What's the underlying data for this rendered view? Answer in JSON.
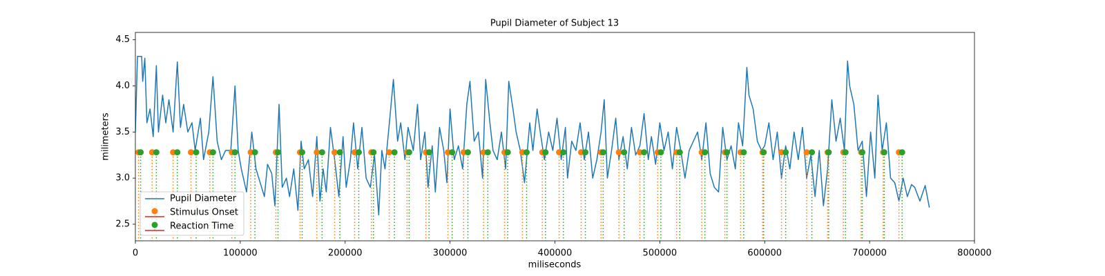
{
  "chart_data": {
    "type": "line",
    "title": "Pupil Diameter of Subject 13",
    "xlabel": "miliseconds",
    "ylabel": "milimeters",
    "xlim": [
      0,
      800000
    ],
    "ylim": [
      2.32,
      4.58
    ],
    "xticks": [
      0,
      100000,
      200000,
      300000,
      400000,
      500000,
      600000,
      700000,
      800000
    ],
    "yticks": [
      2.5,
      {
        "value": 3,
        "label": "3.0"
      },
      3.5,
      {
        "value": 4,
        "label": "4.0"
      },
      4.5
    ],
    "legend": "lower left",
    "series": [
      {
        "name": "Pupil Diameter",
        "type": "line",
        "color": "#1f77b4",
        "x": [
          0,
          2000,
          6000,
          7000,
          9000,
          11000,
          14000,
          17000,
          20000,
          22000,
          26000,
          29000,
          32000,
          36000,
          40000,
          43000,
          46000,
          50000,
          54000,
          57000,
          62000,
          65000,
          70000,
          74000,
          78000,
          82000,
          86000,
          91000,
          95000,
          98000,
          101000,
          106000,
          111000,
          115000,
          119000,
          123000,
          126000,
          130000,
          133000,
          137000,
          140000,
          144000,
          147000,
          151000,
          155000,
          158000,
          161000,
          165000,
          169000,
          173000,
          176000,
          179000,
          182000,
          186000,
          190000,
          194000,
          198000,
          201000,
          205000,
          208000,
          212000,
          216000,
          220000,
          224000,
          228000,
          232000,
          235000,
          238000,
          243000,
          246000,
          250000,
          253000,
          257000,
          260000,
          265000,
          269000,
          272000,
          276000,
          279000,
          283000,
          286000,
          290000,
          294000,
          297000,
          300000,
          304000,
          308000,
          312000,
          316000,
          319000,
          323000,
          327000,
          331000,
          334000,
          338000,
          341000,
          345000,
          349000,
          353000,
          356000,
          360000,
          363000,
          367000,
          371000,
          376000,
          379000,
          383000,
          386000,
          390000,
          394000,
          398000,
          402000,
          406000,
          410000,
          412000,
          416000,
          420000,
          424000,
          428000,
          432000,
          436000,
          440000,
          444000,
          447000,
          450000,
          454000,
          458000,
          461000,
          465000,
          469000,
          473000,
          477000,
          481000,
          485000,
          489000,
          492000,
          496000,
          500000,
          504000,
          508000,
          512000,
          516000,
          520000,
          524000,
          528000,
          532000,
          536000,
          540000,
          544000,
          548000,
          552000,
          556000,
          560000,
          564000,
          568000,
          572000,
          575000,
          579000,
          583000,
          585000,
          589000,
          593000,
          597000,
          600000,
          604000,
          608000,
          612000,
          616000,
          620000,
          624000,
          628000,
          632000,
          636000,
          640000,
          644000,
          648000,
          652000,
          656000,
          660000,
          664000,
          668000,
          672000,
          676000,
          679000,
          681000,
          685000,
          689000,
          693000,
          697000,
          701000,
          705000,
          708000,
          712000,
          716000,
          720000,
          724000,
          728000,
          732000,
          736000,
          740000,
          743000,
          748000,
          753000,
          757000
        ],
        "values": [
          3.5,
          4.32,
          4.32,
          4.05,
          4.3,
          3.6,
          3.75,
          3.45,
          4.22,
          3.5,
          3.9,
          3.6,
          3.85,
          3.5,
          4.26,
          3.55,
          3.8,
          3.5,
          3.6,
          3.3,
          3.65,
          3.2,
          3.5,
          4.1,
          3.4,
          3.2,
          3.3,
          3.3,
          4.0,
          3.3,
          3.1,
          2.85,
          3.5,
          3.1,
          2.95,
          2.8,
          3.15,
          3.05,
          2.7,
          3.8,
          2.9,
          3.0,
          2.8,
          3.1,
          2.65,
          3.4,
          3.1,
          3.2,
          2.8,
          3.45,
          2.75,
          3.1,
          2.85,
          3.55,
          3.2,
          2.8,
          3.45,
          2.9,
          3.2,
          3.6,
          3.1,
          3.55,
          3.0,
          2.9,
          3.25,
          2.6,
          3.3,
          3.1,
          3.7,
          4.07,
          3.4,
          3.6,
          3.2,
          3.55,
          3.3,
          3.8,
          3.2,
          3.5,
          2.9,
          3.35,
          2.85,
          3.55,
          3.3,
          2.95,
          3.75,
          3.2,
          3.35,
          3.1,
          3.8,
          4.05,
          3.4,
          3.5,
          3.0,
          4.07,
          3.6,
          3.3,
          3.2,
          3.5,
          3.1,
          4.05,
          3.75,
          3.5,
          3.3,
          2.95,
          3.6,
          3.3,
          3.75,
          3.5,
          3.2,
          3.5,
          3.3,
          3.65,
          3.2,
          3.55,
          3.0,
          3.4,
          3.3,
          3.6,
          3.2,
          3.5,
          3.0,
          3.2,
          3.5,
          3.85,
          3.0,
          3.3,
          3.65,
          3.2,
          3.45,
          3.1,
          3.55,
          3.25,
          3.35,
          3.7,
          3.2,
          3.45,
          3.15,
          3.6,
          3.3,
          3.5,
          3.1,
          3.55,
          3.3,
          3.0,
          3.3,
          3.4,
          3.5,
          3.2,
          3.6,
          3.05,
          2.9,
          2.85,
          3.55,
          3.2,
          3.35,
          3.1,
          3.6,
          3.35,
          4.2,
          3.9,
          3.75,
          3.4,
          3.3,
          3.35,
          3.6,
          3.2,
          3.5,
          3.0,
          3.35,
          3.1,
          3.5,
          3.2,
          3.55,
          3.0,
          3.25,
          2.8,
          3.3,
          2.7,
          3.1,
          3.85,
          3.4,
          3.65,
          3.3,
          4.27,
          4.0,
          3.8,
          3.3,
          3.4,
          2.8,
          3.5,
          3.0,
          3.9,
          3.3,
          3.6,
          3.0,
          2.95,
          2.75,
          3.0,
          2.8,
          2.93,
          2.9,
          2.75,
          2.92,
          2.68
        ]
      },
      {
        "name": "Stimulus Onset",
        "type": "stem",
        "color": "#ff7f0e",
        "stem_color": "#ff7f0e",
        "baseline_color": "#d62728",
        "x": [
          3000,
          16000,
          36000,
          53000,
          71000,
          92000,
          110000,
          134000,
          157000,
          173000,
          190000,
          209000,
          225000,
          242000,
          259000,
          277000,
          298000,
          313000,
          332000,
          352000,
          369000,
          388000,
          404000,
          425000,
          444000,
          461000,
          481000,
          498000,
          516000,
          540000,
          562000,
          577000,
          598000,
          616000,
          640000,
          660000,
          675000,
          692000,
          713000,
          728000
        ],
        "values": [
          3.28,
          3.28,
          3.28,
          3.28,
          3.28,
          3.28,
          3.28,
          3.28,
          3.28,
          3.28,
          3.28,
          3.28,
          3.28,
          3.28,
          3.28,
          3.28,
          3.28,
          3.28,
          3.28,
          3.28,
          3.28,
          3.28,
          3.28,
          3.28,
          3.28,
          3.28,
          3.28,
          3.28,
          3.28,
          3.28,
          3.28,
          3.28,
          3.28,
          3.28,
          3.28,
          3.28,
          3.28,
          3.28,
          3.28,
          3.28
        ]
      },
      {
        "name": "Reaction Time",
        "type": "stem",
        "color": "#2ca02c",
        "stem_color": "#2ca02c",
        "baseline_color": "#d62728",
        "x": [
          5000,
          20000,
          40000,
          58000,
          74000,
          95000,
          114000,
          136000,
          159000,
          178000,
          195000,
          213000,
          227000,
          247000,
          261000,
          280000,
          302000,
          317000,
          336000,
          355000,
          373000,
          391000,
          408000,
          429000,
          446000,
          466000,
          485000,
          501000,
          519000,
          543000,
          564000,
          580000,
          599000,
          620000,
          645000,
          661000,
          677000,
          693000,
          714000,
          731000
        ],
        "values": [
          3.28,
          3.28,
          3.28,
          3.28,
          3.28,
          3.28,
          3.28,
          3.28,
          3.28,
          3.28,
          3.28,
          3.28,
          3.28,
          3.28,
          3.28,
          3.28,
          3.28,
          3.28,
          3.28,
          3.28,
          3.28,
          3.28,
          3.28,
          3.28,
          3.28,
          3.28,
          3.28,
          3.28,
          3.28,
          3.28,
          3.28,
          3.28,
          3.28,
          3.28,
          3.28,
          3.28,
          3.28,
          3.28,
          3.28,
          3.28
        ]
      }
    ]
  }
}
